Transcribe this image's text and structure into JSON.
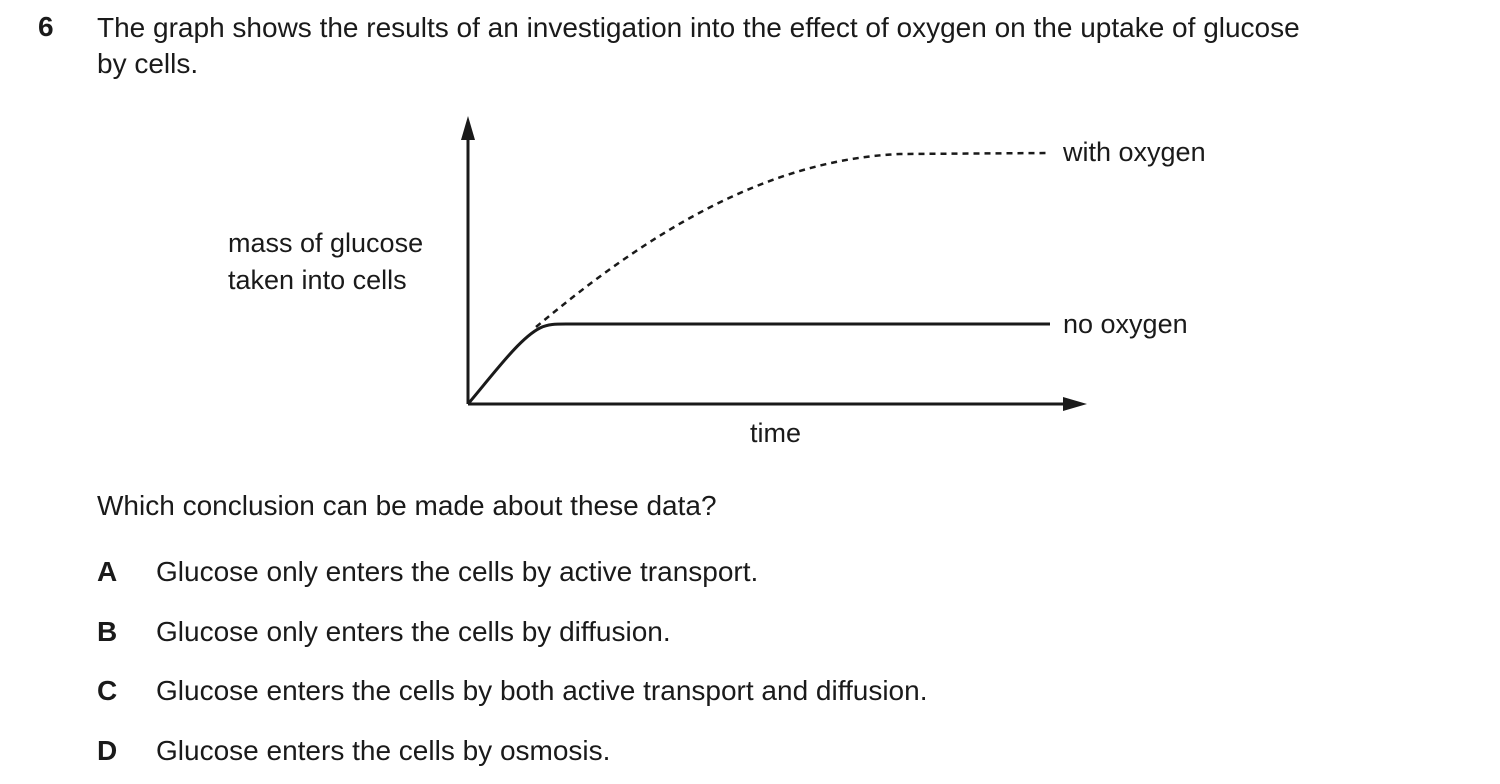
{
  "question": {
    "number": "6",
    "stem_lines": [
      "The graph shows the results of an investigation into the effect of oxygen on the uptake of glucose",
      "by cells."
    ],
    "prompt": "Which conclusion can be made about these data?",
    "options": [
      {
        "letter": "A",
        "text": "Glucose only enters the cells by active transport."
      },
      {
        "letter": "B",
        "text": "Glucose only enters the cells by diffusion."
      },
      {
        "letter": "C",
        "text": "Glucose enters the cells by both active transport and diffusion."
      },
      {
        "letter": "D",
        "text": "Glucose enters the cells by osmosis."
      }
    ]
  },
  "chart_data": {
    "type": "line",
    "title": "",
    "xlabel": "time",
    "ylabel_lines": [
      "mass of glucose",
      "taken into cells"
    ],
    "axis_ticks": "none",
    "grid": false,
    "series": [
      {
        "name": "with oxygen",
        "line_style": "dashed"
      },
      {
        "name": "no oxygen",
        "line_style": "solid"
      }
    ]
  },
  "colors": {
    "ink": "#1a1a1a",
    "background": "#ffffff"
  }
}
